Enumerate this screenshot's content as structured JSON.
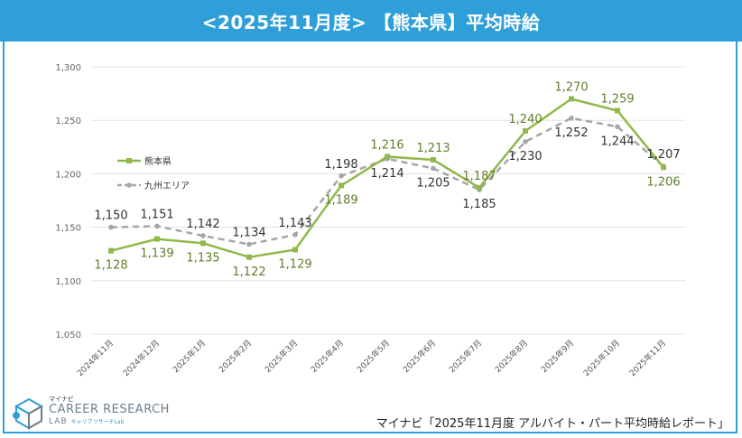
{
  "header": {
    "title": "<2025年11月度> 【熊本県】平均時給"
  },
  "source": "マイナビ「2025年11月度 アルバイト・パート平均時給レポート」",
  "logo": {
    "kana": "マイナビ",
    "main": "CAREER RESEARCH",
    "sub": "LAB",
    "sub_kana": "キャリアリサーチLab"
  },
  "colors": {
    "header": "#2f9fd9",
    "kumamoto": "#8fb94b",
    "kyushu": "#a6a6a6",
    "grid": "#e3e3e3"
  },
  "chart_data": {
    "type": "line",
    "title": "",
    "xlabel": "",
    "ylabel": "",
    "categories": [
      "2024年11月",
      "2024年12月",
      "2025年1月",
      "2025年2月",
      "2025年3月",
      "2025年4月",
      "2025年5月",
      "2025年6月",
      "2025年7月",
      "2025年8月",
      "2025年9月",
      "2025年10月",
      "2025年11月"
    ],
    "ylim": [
      1050,
      1300
    ],
    "yticks": [
      1050,
      1100,
      1150,
      1200,
      1250,
      1300
    ],
    "ytick_labels": [
      "1,050",
      "1,100",
      "1,150",
      "1,200",
      "1,250",
      "1,300"
    ],
    "grid": true,
    "legend": "left",
    "series": [
      {
        "name": "熊本県",
        "style": "solid",
        "marker": "square",
        "color": "#8fb94b",
        "values": [
          1128,
          1139,
          1135,
          1122,
          1129,
          1189,
          1216,
          1213,
          1187,
          1240,
          1270,
          1259,
          1206
        ],
        "labels": [
          "1,128",
          "1,139",
          "1,135",
          "1,122",
          "1,129",
          "1,189",
          "1,216",
          "1,213",
          "1,187",
          "1,240",
          "1,270",
          "1,259",
          "1,206"
        ]
      },
      {
        "name": "九州エリア",
        "style": "dashed",
        "marker": "circle",
        "color": "#a6a6a6",
        "values": [
          1150,
          1151,
          1142,
          1134,
          1143,
          1198,
          1214,
          1205,
          1185,
          1230,
          1252,
          1244,
          1207
        ],
        "labels": [
          "1,150",
          "1,151",
          "1,142",
          "1,134",
          "1,143",
          "1,198",
          "1,214",
          "1,205",
          "1,185",
          "1,230",
          "1,252",
          "1,244",
          "1,207"
        ]
      }
    ]
  }
}
